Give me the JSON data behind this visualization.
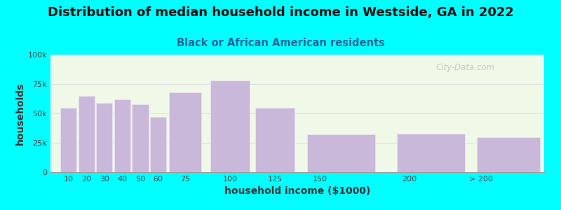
{
  "title": "Distribution of median household income in Westside, GA in 2022",
  "subtitle": "Black or African American residents",
  "xlabel": "household income ($1000)",
  "ylabel": "households",
  "bar_labels": [
    "10",
    "20",
    "30",
    "40",
    "50",
    "60",
    "75",
    "100",
    "125",
    "150",
    "200",
    "> 200"
  ],
  "bar_values": [
    55000,
    65000,
    59000,
    62000,
    58000,
    47000,
    68000,
    78000,
    55000,
    32000,
    33000,
    30000
  ],
  "bar_color": "#c9b8d9",
  "bar_edge_color": "#e8e0f0",
  "background_color": "#00ffff",
  "plot_bg_color": "#f0f8e8",
  "ylim": [
    0,
    100000
  ],
  "yticks": [
    0,
    25000,
    50000,
    75000,
    100000
  ],
  "ytick_labels": [
    "0",
    "25k",
    "50k",
    "75k",
    "100k"
  ],
  "title_fontsize": 13,
  "subtitle_fontsize": 10.5,
  "label_fontsize": 10,
  "tick_fontsize": 8,
  "watermark": "City-Data.com"
}
